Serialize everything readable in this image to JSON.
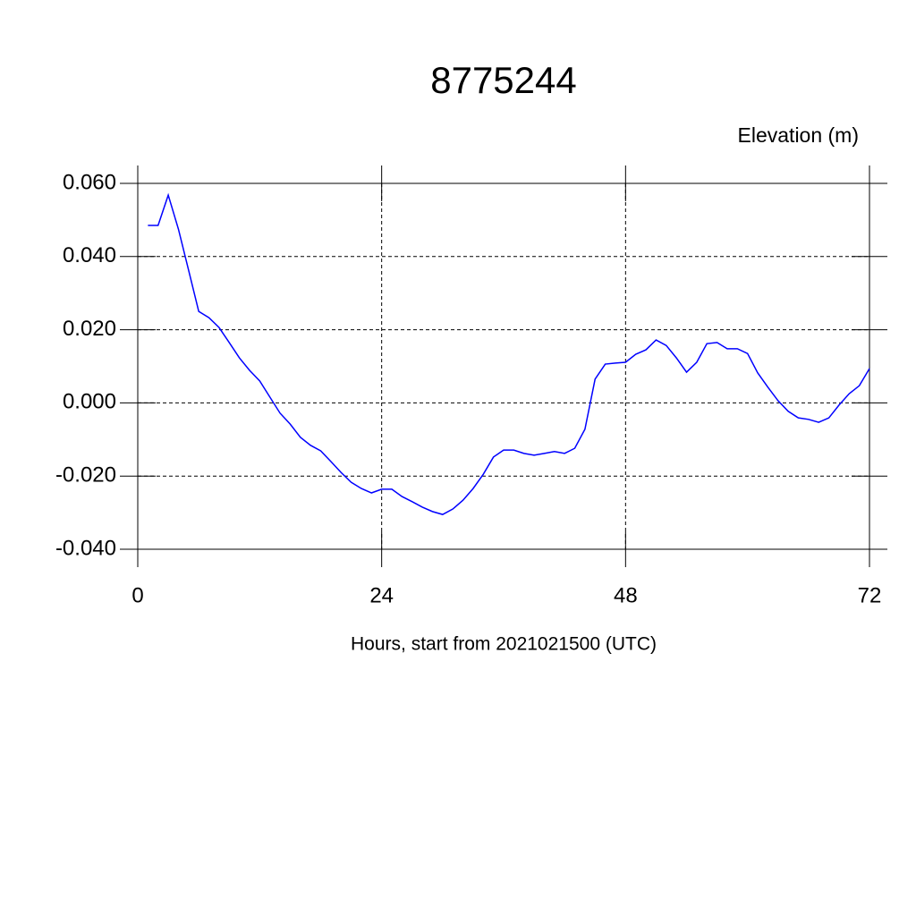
{
  "chart_data": {
    "type": "line",
    "title": "8775244",
    "ylabel": "Elevation (m)",
    "xlabel": "Hours, start from 2021021500 (UTC)",
    "x": [
      1,
      2,
      3,
      4,
      5,
      6,
      7,
      8,
      9,
      10,
      11,
      12,
      13,
      14,
      15,
      16,
      17,
      18,
      19,
      20,
      21,
      22,
      23,
      24,
      25,
      26,
      27,
      28,
      29,
      30,
      31,
      32,
      33,
      34,
      35,
      36,
      37,
      38,
      39,
      40,
      41,
      42,
      43,
      44,
      45,
      46,
      47,
      48,
      49,
      50,
      51,
      52,
      53,
      54,
      55,
      56,
      57,
      58,
      59,
      60,
      61,
      62,
      63,
      64,
      65,
      66,
      67,
      68,
      69,
      70,
      71,
      72
    ],
    "series": [
      {
        "color": "#0000ff",
        "values": [
          0.0485,
          0.0485,
          0.0568,
          0.0475,
          0.0363,
          0.025,
          0.0233,
          0.0206,
          0.0165,
          0.0123,
          0.0089,
          0.006,
          0.0016,
          -0.0028,
          -0.0058,
          -0.0094,
          -0.0116,
          -0.0131,
          -0.016,
          -0.019,
          -0.0217,
          -0.0234,
          -0.0246,
          -0.0236,
          -0.0236,
          -0.0256,
          -0.027,
          -0.0285,
          -0.0297,
          -0.0305,
          -0.029,
          -0.0266,
          -0.0234,
          -0.0195,
          -0.0148,
          -0.0129,
          -0.0129,
          -0.0138,
          -0.0143,
          -0.0138,
          -0.0133,
          -0.0138,
          -0.0124,
          -0.0072,
          0.0065,
          0.0106,
          0.0109,
          0.0111,
          0.0133,
          0.0145,
          0.0172,
          0.0157,
          0.0123,
          0.0084,
          0.0111,
          0.0162,
          0.0165,
          0.0148,
          0.0148,
          0.0135,
          0.0082,
          0.0043,
          0.0006,
          -0.0023,
          -0.0041,
          -0.0045,
          -0.0053,
          -0.0041,
          -0.0006,
          0.0025,
          0.0047,
          0.0094
        ]
      }
    ],
    "xlim": [
      0,
      72
    ],
    "xticks": [
      0,
      24,
      48,
      72
    ],
    "ylim": [
      -0.04,
      0.06
    ],
    "yticks": [
      {
        "value": -0.04,
        "label": "-0.040"
      },
      {
        "value": -0.02,
        "label": "-0.020"
      },
      {
        "value": 0,
        "label": "0.000"
      },
      {
        "value": 0.02,
        "label": "0.020"
      },
      {
        "value": 0.04,
        "label": "0.040"
      },
      {
        "value": 0.06,
        "label": "0.060"
      }
    ],
    "grid": true
  }
}
